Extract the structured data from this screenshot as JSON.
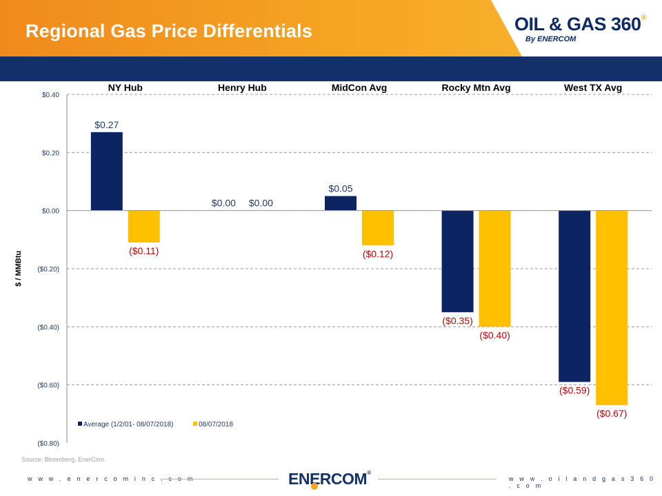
{
  "slide": {
    "title": "Regional Gas Price Differentials",
    "source": "Source: Bloomberg, EnerCom.",
    "footer_left": "w w w . e n e r c o m i n c . c o m",
    "footer_right": "w w w . o i l a n d g a s 3 6 0 . c o m"
  },
  "logo": {
    "main": "OIL & GAS 360",
    "registered": "®",
    "sub": "By ENERCOM"
  },
  "footer_logo": {
    "text": "ENERCOM",
    "registered": "®"
  },
  "colors": {
    "average": "#0c2461",
    "current": "#ffc000",
    "negative_label": "#c00000",
    "positive_label": "#1f3864"
  },
  "chart_data": {
    "type": "bar",
    "categories": [
      "NY Hub",
      "Henry Hub",
      "MidCon Avg",
      "Rocky Mtn Avg",
      "West TX Avg"
    ],
    "series": [
      {
        "name": "Average (1/2/01- 08/07/2018)",
        "values": [
          0.27,
          0.0,
          0.05,
          -0.35,
          -0.59
        ],
        "labels": [
          "$0.27",
          "$0.00",
          "$0.05",
          "($0.35)",
          "($0.59)"
        ]
      },
      {
        "name": "08/07/2018",
        "values": [
          -0.11,
          0.0,
          -0.12,
          -0.4,
          -0.67
        ],
        "labels": [
          "($0.11)",
          "$0.00",
          "($0.12)",
          "($0.40)",
          "($0.67)"
        ]
      }
    ],
    "ylabel": "$ / MMBtu",
    "ylim": [
      -0.8,
      0.4
    ],
    "yticks": [
      0.4,
      0.2,
      0.0,
      -0.2,
      -0.4,
      -0.6,
      -0.8
    ],
    "ytick_labels": [
      "$0.40",
      "$0.20",
      "$0.00",
      "($0.20)",
      "($0.40)",
      "($0.60)",
      "($0.80)"
    ],
    "grid": true,
    "legend_position": "bottom-left"
  }
}
